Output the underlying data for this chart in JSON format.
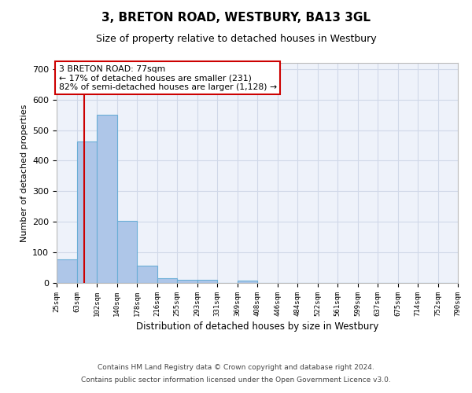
{
  "title": "3, BRETON ROAD, WESTBURY, BA13 3GL",
  "subtitle": "Size of property relative to detached houses in Westbury",
  "xlabel": "Distribution of detached houses by size in Westbury",
  "ylabel": "Number of detached properties",
  "footer_line1": "Contains HM Land Registry data © Crown copyright and database right 2024.",
  "footer_line2": "Contains public sector information licensed under the Open Government Licence v3.0.",
  "bin_labels": [
    "25sqm",
    "63sqm",
    "102sqm",
    "140sqm",
    "178sqm",
    "216sqm",
    "255sqm",
    "293sqm",
    "331sqm",
    "369sqm",
    "408sqm",
    "446sqm",
    "484sqm",
    "522sqm",
    "561sqm",
    "599sqm",
    "637sqm",
    "675sqm",
    "714sqm",
    "752sqm",
    "790sqm"
  ],
  "bar_heights": [
    78,
    463,
    550,
    203,
    57,
    15,
    10,
    10,
    0,
    8,
    0,
    0,
    0,
    0,
    0,
    0,
    0,
    0,
    0,
    0
  ],
  "bar_color": "#aec6e8",
  "bar_edgecolor": "#6aaed6",
  "grid_color": "#d0d8e8",
  "background_color": "#eef2fa",
  "annotation_text": "3 BRETON ROAD: 77sqm\n← 17% of detached houses are smaller (231)\n82% of semi-detached houses are larger (1,128) →",
  "annotation_box_edgecolor": "#cc0000",
  "red_line_color": "#cc0000",
  "ylim": [
    0,
    720
  ],
  "yticks": [
    0,
    100,
    200,
    300,
    400,
    500,
    600,
    700
  ]
}
